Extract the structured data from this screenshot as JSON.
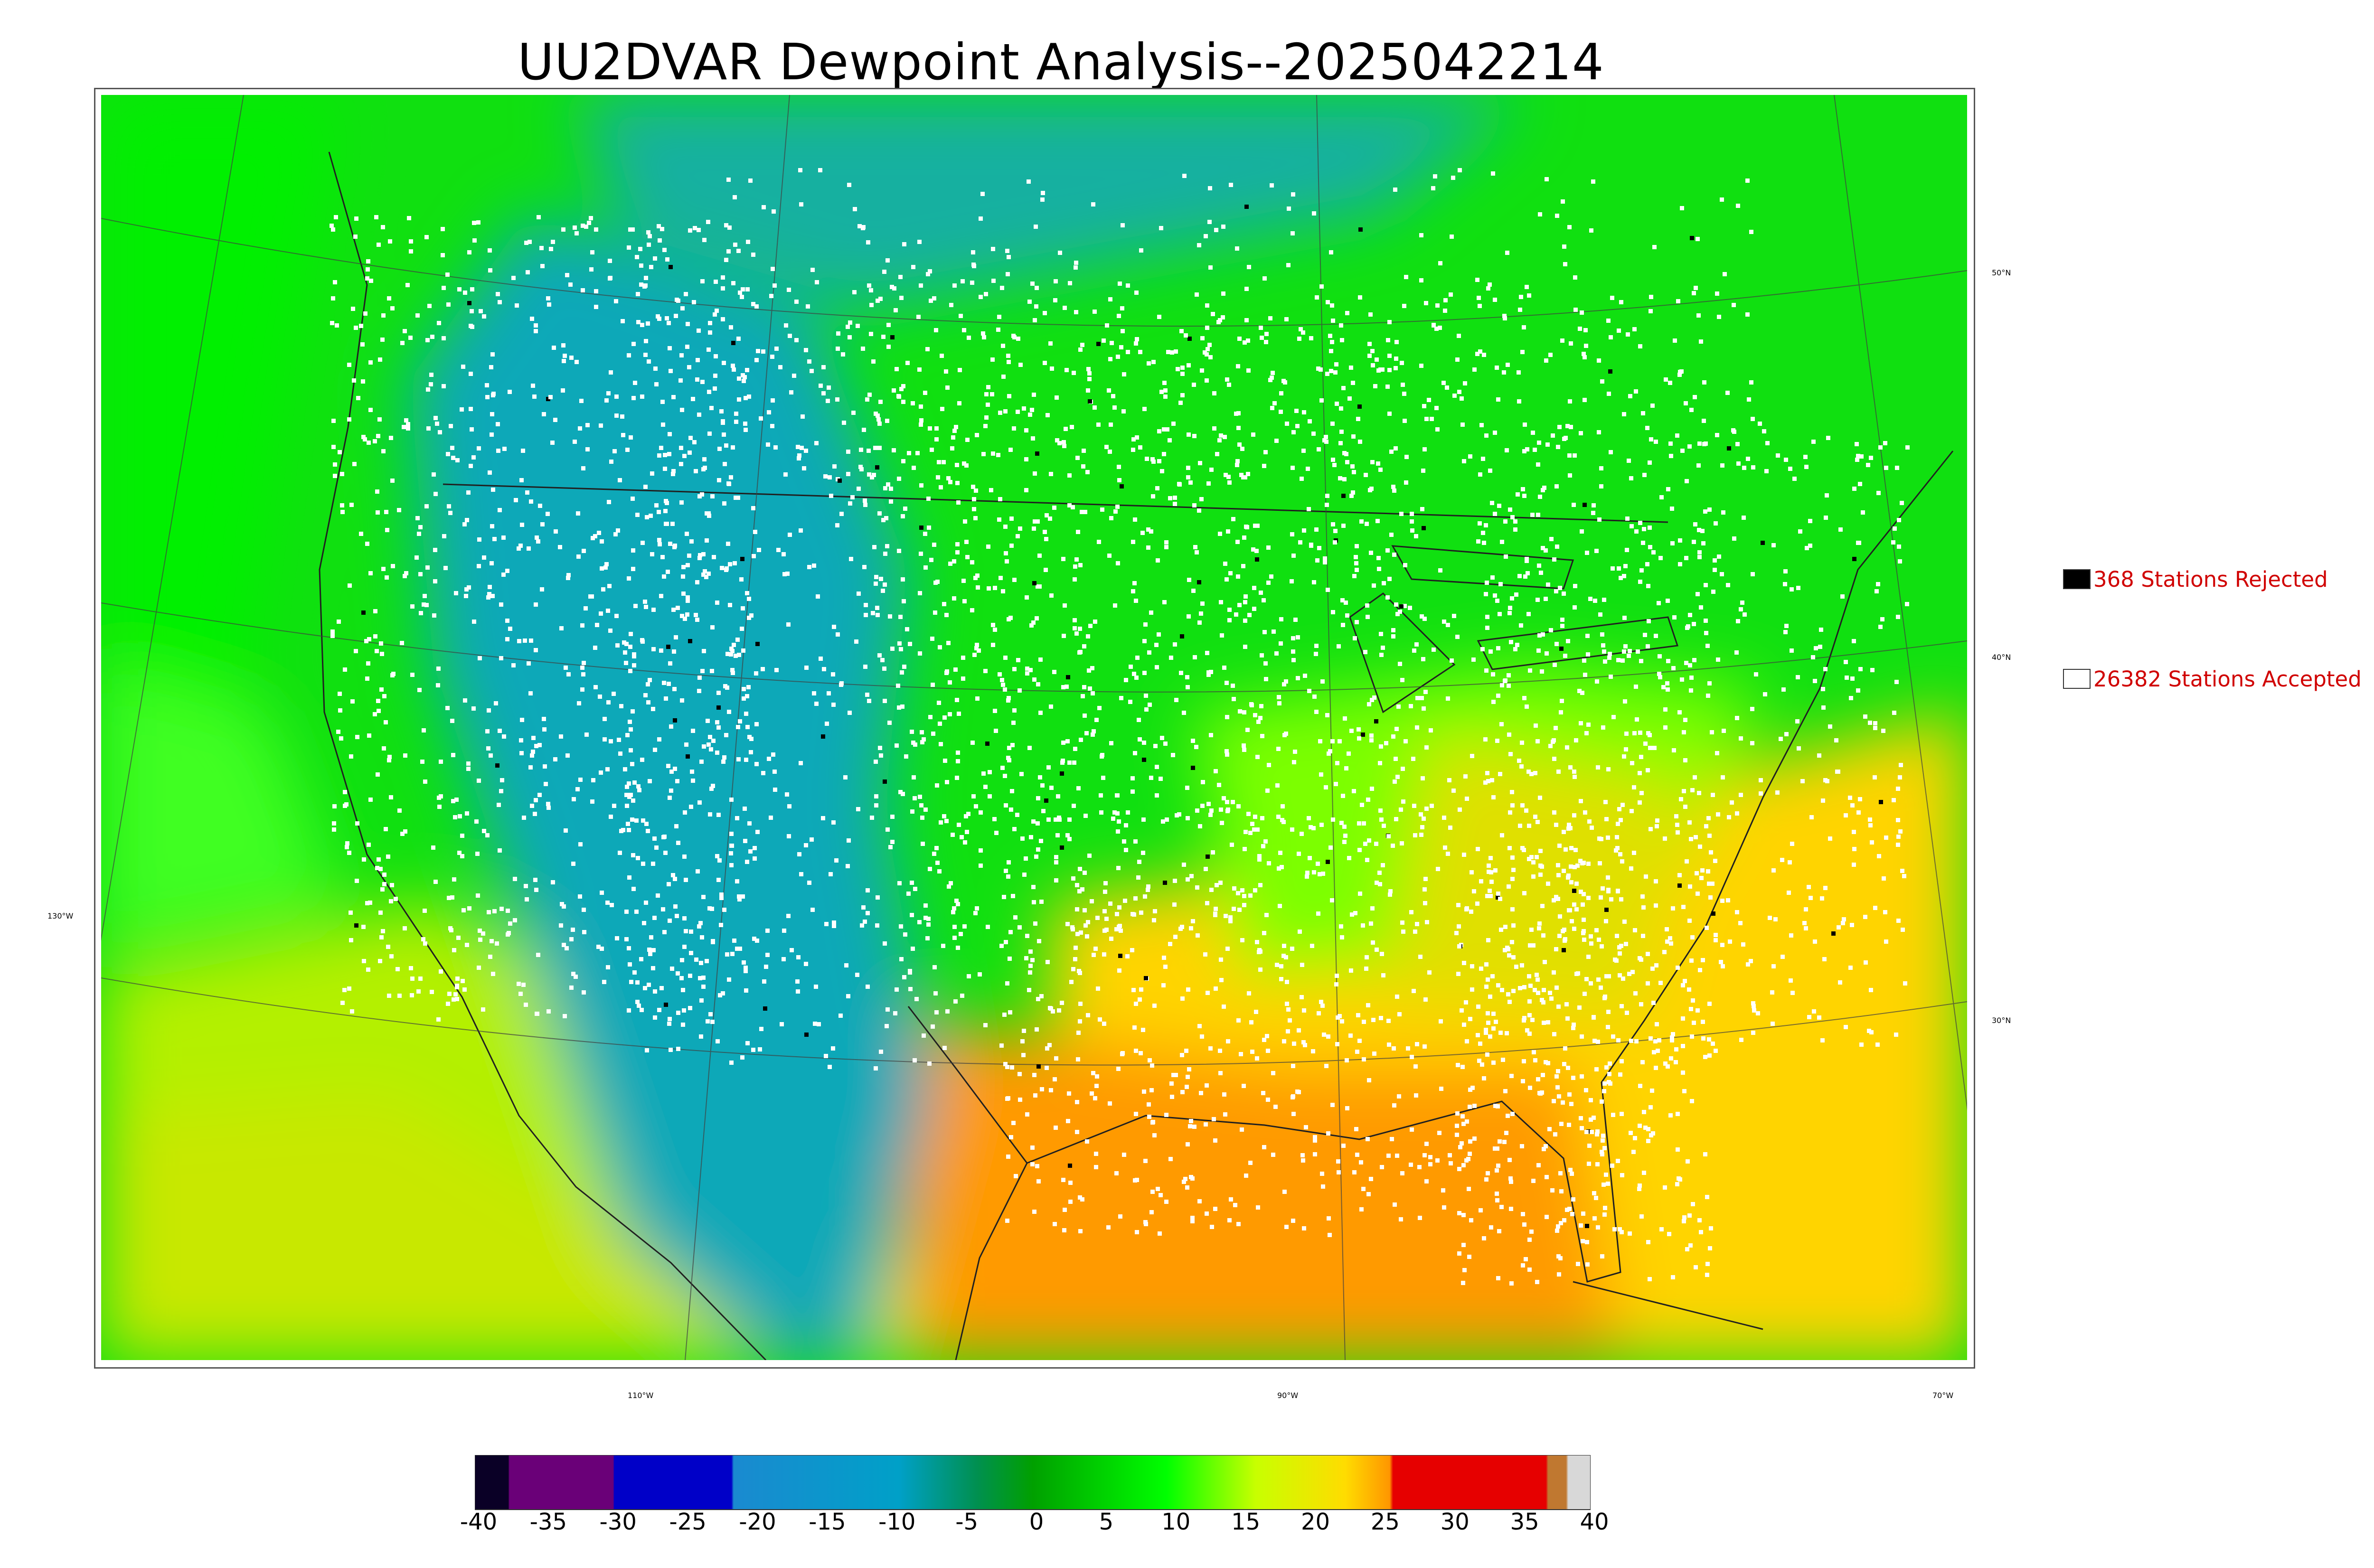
{
  "title": "UU2DVAR Dewpoint Analysis--2025042214",
  "map": {
    "lat_labels": [
      "50°N",
      "40°N",
      "30°N"
    ],
    "lon_labels": [
      "130°W",
      "110°W",
      "90°W",
      "70°W"
    ]
  },
  "legend": {
    "rejected": {
      "label": "368 Stations Rejected",
      "color": "#000000"
    },
    "accepted": {
      "label": "26382 Stations Accepted",
      "color": "#ffffff"
    }
  },
  "colorbar": {
    "ticks": [
      "-40",
      "-35",
      "-30",
      "-25",
      "-20",
      "-15",
      "-10",
      "-5",
      "0",
      "5",
      "10",
      "15",
      "20",
      "25",
      "30",
      "35",
      "40"
    ],
    "colors": [
      "#0a0026",
      "#6a0078",
      "#0000c8",
      "#009ac8",
      "#008c00",
      "#00ff00",
      "#c8ff00",
      "#ffd700",
      "#ff9600",
      "#e60000",
      "#c07830",
      "#d8d8d8"
    ]
  }
}
